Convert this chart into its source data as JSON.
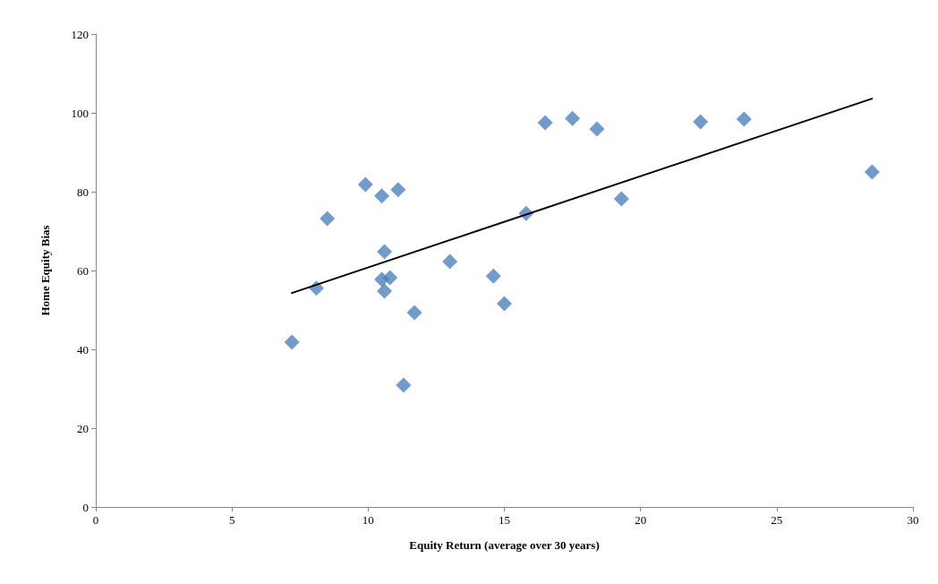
{
  "chart_data": {
    "type": "scatter",
    "xlabel": "Equity Return (average over 30 years)",
    "ylabel": "Home Equity Bias",
    "xlim": [
      0,
      30
    ],
    "xticks": [
      0,
      5,
      10,
      15,
      20,
      25,
      30
    ],
    "ylim": [
      0,
      120
    ],
    "yticks": [
      0,
      20,
      40,
      60,
      80,
      100,
      120
    ],
    "grid": false,
    "marker": "diamond",
    "series": [
      {
        "color": "#4f81bd",
        "x": [
          7.2,
          8.1,
          8.5,
          9.9,
          10.5,
          11.1,
          10.6,
          10.5,
          10.8,
          10.6,
          11.7,
          11.3,
          13.0,
          14.6,
          15.0,
          15.8,
          16.5,
          17.5,
          18.4,
          19.3,
          22.2,
          23.8,
          28.5
        ],
        "values": [
          41.8,
          55.5,
          73.2,
          81.8,
          78.9,
          80.5,
          64.8,
          57.7,
          58.2,
          54.8,
          49.3,
          30.9,
          62.3,
          58.6,
          51.6,
          74.5,
          97.5,
          98.6,
          95.9,
          78.2,
          97.7,
          98.4,
          85.0
        ]
      },
      {
        "type": "line",
        "color": "#000000",
        "marker": "none",
        "line_style": "solid",
        "x": [
          7.2,
          28.5
        ],
        "values": [
          54.3,
          103.6
        ]
      }
    ]
  }
}
